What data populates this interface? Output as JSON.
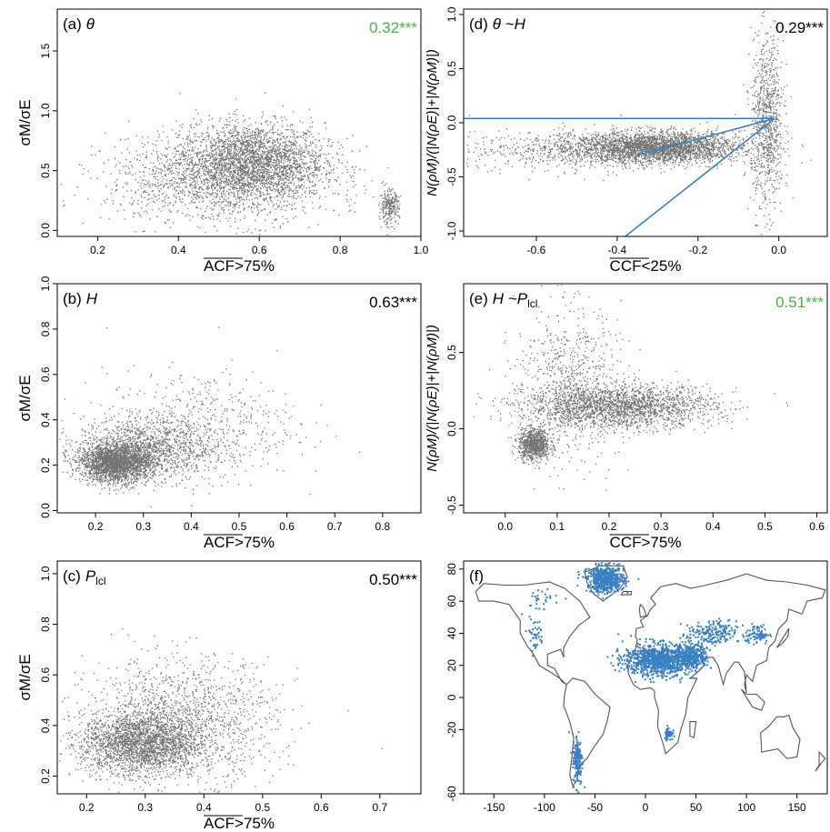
{
  "colors": {
    "points": "#000000",
    "highlight": "#3a7fc1",
    "green": "#4daf4a",
    "coast": "#555555"
  },
  "chart_data": [
    {
      "type": "scatter",
      "panel": "(a)",
      "title": "θ",
      "ylabel": "σM/σE",
      "xlabel": "ACF>75%",
      "xlim": [
        0.1,
        1.0
      ],
      "ylim": [
        -0.05,
        1.85
      ],
      "xticks": [
        "0.2",
        "0.4",
        "0.6",
        "0.8",
        "1.0"
      ],
      "yticks": [
        "0.0",
        "0.5",
        "1.0",
        "1.5"
      ],
      "stat": "0.32***",
      "stat_color": "green",
      "clusters": [
        {
          "x": 0.58,
          "y": 0.58,
          "sx": 0.09,
          "sy": 0.16,
          "n": 2600
        },
        {
          "x": 0.5,
          "y": 0.42,
          "sx": 0.14,
          "sy": 0.18,
          "n": 1400
        },
        {
          "x": 0.92,
          "y": 0.2,
          "sx": 0.012,
          "sy": 0.07,
          "n": 260
        }
      ]
    },
    {
      "type": "scatter",
      "panel": "(d)",
      "title": "θ ~H",
      "ylabel": "N(ρM)/(|N(ρE)|+|N(ρM)|)",
      "xlabel": "CCF<25%",
      "xlim": [
        -0.78,
        0.12
      ],
      "ylim": [
        -1.05,
        1.05
      ],
      "xticks": [
        "-0.6",
        "-0.4",
        "-0.2",
        "0.0"
      ],
      "yticks": [
        "-1.0",
        "-0.5",
        "0.0",
        "0.5",
        "1.0"
      ],
      "stat": "0.29***",
      "stat_color": "black",
      "clusters": [
        {
          "x": -0.3,
          "y": -0.22,
          "sx": 0.1,
          "sy": 0.07,
          "n": 2600
        },
        {
          "x": -0.45,
          "y": -0.25,
          "sx": 0.16,
          "sy": 0.09,
          "n": 900
        },
        {
          "x": -0.03,
          "y": 0.0,
          "sx": 0.02,
          "sy": 0.4,
          "n": 900
        }
      ],
      "lines": [
        {
          "x": [
            -0.78,
            -0.01
          ],
          "y": [
            0.04,
            0.04
          ]
        },
        {
          "x": [
            -0.38,
            -0.01
          ],
          "y": [
            -1.05,
            0.04
          ]
        },
        {
          "x": [
            -0.35,
            -0.01
          ],
          "y": [
            -0.3,
            0.04
          ]
        }
      ]
    },
    {
      "type": "scatter",
      "panel": "(b)",
      "title": "H",
      "ylabel": "σM/σE",
      "xlabel": "ACF>75%",
      "xlim": [
        0.12,
        0.88
      ],
      "ylim": [
        -0.01,
        1.0
      ],
      "xticks": [
        "0.2",
        "0.3",
        "0.4",
        "0.5",
        "0.6",
        "0.7",
        "0.8"
      ],
      "yticks": [
        "0.0",
        "0.2",
        "0.4",
        "0.6",
        "0.8",
        "1.0"
      ],
      "stat": "0.63***",
      "stat_color": "black",
      "clusters": [
        {
          "x": 0.24,
          "y": 0.21,
          "sx": 0.035,
          "sy": 0.04,
          "n": 2200
        },
        {
          "x": 0.3,
          "y": 0.27,
          "sx": 0.07,
          "sy": 0.07,
          "n": 1500
        },
        {
          "x": 0.42,
          "y": 0.38,
          "sx": 0.1,
          "sy": 0.12,
          "n": 500
        }
      ]
    },
    {
      "type": "scatter",
      "panel": "(e)",
      "title": "H ~P",
      "title_sub": "lcl",
      "ylabel": "N(ρM)/(|N(ρE)|+|N(ρM)|)",
      "xlabel": "CCF>75%",
      "xlim": [
        -0.08,
        0.62
      ],
      "ylim": [
        -0.55,
        0.95
      ],
      "xticks": [
        "0.0",
        "0.1",
        "0.2",
        "0.3",
        "0.4",
        "0.5",
        "0.6"
      ],
      "yticks": [
        "-0.5",
        "0.0",
        "0.5"
      ],
      "stat": "0.51***",
      "stat_color": "green",
      "clusters": [
        {
          "x": 0.055,
          "y": -0.1,
          "sx": 0.015,
          "sy": 0.05,
          "n": 900
        },
        {
          "x": 0.22,
          "y": 0.15,
          "sx": 0.09,
          "sy": 0.07,
          "n": 2200
        },
        {
          "x": 0.12,
          "y": 0.3,
          "sx": 0.05,
          "sy": 0.25,
          "n": 700
        }
      ]
    },
    {
      "type": "scatter",
      "panel": "(c)",
      "title": "P",
      "title_sub": "lcl",
      "ylabel": "σM/σE",
      "xlabel": "ACF>75%",
      "xlim": [
        0.15,
        0.77
      ],
      "ylim": [
        0.13,
        1.05
      ],
      "xticks": [
        "0.2",
        "0.3",
        "0.4",
        "0.5",
        "0.6",
        "0.7"
      ],
      "yticks": [
        "0.2",
        "0.4",
        "0.6",
        "0.8",
        "1.0"
      ],
      "stat": "0.50***",
      "stat_color": "black",
      "clusters": [
        {
          "x": 0.29,
          "y": 0.33,
          "sx": 0.05,
          "sy": 0.06,
          "n": 2300
        },
        {
          "x": 0.36,
          "y": 0.42,
          "sx": 0.08,
          "sy": 0.12,
          "n": 1500
        }
      ]
    },
    {
      "type": "map",
      "panel": "(f)",
      "xlim": [
        -180,
        180
      ],
      "ylim": [
        -60,
        85
      ],
      "xticks": [
        "-150",
        "-100",
        "-50",
        "0",
        "50",
        "100",
        "150"
      ],
      "yticks": [
        "80",
        "60",
        "40",
        "20",
        "0",
        "-20",
        "-60"
      ]
    }
  ]
}
